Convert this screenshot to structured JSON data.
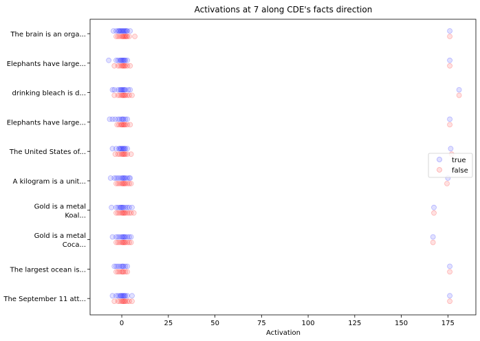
{
  "chart_data": {
    "type": "scatter",
    "title": "Activations at 7 along CDE's facts direction",
    "xlabel": "Activation",
    "ylabel": "",
    "xlim": [
      -17,
      190
    ],
    "xticks": [
      0,
      25,
      50,
      75,
      100,
      125,
      150,
      175
    ],
    "grid": false,
    "legend_position": "right",
    "categories": [
      [
        "The brain is an orga..."
      ],
      [
        "Elephants have large..."
      ],
      [
        "drinking bleach is d..."
      ],
      [
        "Elephants have large..."
      ],
      [
        "The United States of..."
      ],
      [
        "A kilogram is a unit..."
      ],
      [
        "Gold is a metal",
        "Koal..."
      ],
      [
        "Gold is a metal",
        "Coca..."
      ],
      [
        "The largest ocean is..."
      ],
      [
        "The September 11 att..."
      ]
    ],
    "series": [
      {
        "name": "true",
        "color": "#0000ff",
        "values": [
          [
            -4.5,
            -3,
            -2,
            -1.5,
            -1,
            -0.5,
            0,
            0.5,
            1,
            1.5,
            2,
            2.5,
            3,
            4.5,
            176
          ],
          [
            -7,
            -3,
            -2,
            -1,
            -0.5,
            0,
            0.5,
            1,
            1.5,
            2,
            3,
            176
          ],
          [
            -5,
            -4,
            -2,
            -1,
            -0.5,
            0,
            0.5,
            1,
            1.5,
            2,
            3.5,
            4.5,
            181
          ],
          [
            -6.5,
            -5,
            -3.5,
            -2,
            -1,
            0,
            0.5,
            1,
            2,
            3,
            176
          ],
          [
            -5,
            -3,
            -1.5,
            -1,
            -0.5,
            0,
            0.5,
            1,
            1.5,
            2,
            3,
            176.5
          ],
          [
            -6,
            -4,
            -3,
            -2,
            -1,
            0,
            0.5,
            1,
            1.5,
            2,
            3,
            4,
            4.5,
            175
          ],
          [
            -5.5,
            -3,
            -2,
            -1,
            -0.5,
            0,
            0.5,
            1,
            2,
            3,
            4,
            5.5,
            167.5
          ],
          [
            -5,
            -3,
            -2,
            -1,
            0,
            0.5,
            1,
            1.5,
            2,
            3,
            4,
            5,
            167
          ],
          [
            -4,
            -3,
            -2,
            -1,
            0,
            0.5,
            1,
            2,
            3,
            176
          ],
          [
            -5,
            -3,
            -2,
            -1,
            -0.5,
            0,
            0.5,
            1,
            1.5,
            2,
            3,
            5.5,
            176
          ]
        ]
      },
      {
        "name": "false",
        "color": "#ff0000",
        "values": [
          [
            -3,
            -2,
            -1,
            0,
            0.5,
            1,
            1.5,
            2,
            2.5,
            3,
            4,
            7,
            176
          ],
          [
            -4,
            -2,
            -1,
            0,
            0.5,
            1,
            1.5,
            2,
            3,
            4.5,
            176
          ],
          [
            -4,
            -2,
            -1,
            0,
            0.5,
            1,
            1.5,
            2,
            3,
            4,
            5.5,
            181
          ],
          [
            -2.5,
            -1.5,
            -0.5,
            0,
            0.5,
            1,
            1.5,
            2,
            3,
            4.5,
            176
          ],
          [
            -3.5,
            -2,
            -1,
            0,
            0.5,
            1,
            1.5,
            2,
            3,
            5,
            177
          ],
          [
            -3,
            -2,
            -1,
            0,
            0.5,
            1,
            1.5,
            2,
            3,
            4,
            5,
            174.5
          ],
          [
            -3,
            -2,
            -1,
            0,
            0.5,
            1,
            1.5,
            2,
            3,
            4,
            5,
            6.5,
            167.5
          ],
          [
            -3,
            -2,
            -1,
            0,
            0.5,
            1,
            1.5,
            2,
            3,
            4,
            5,
            167
          ],
          [
            -3,
            -2,
            -1,
            0,
            0.5,
            1,
            2,
            3,
            176
          ],
          [
            -4,
            -2,
            -1,
            0,
            0.5,
            1,
            1.5,
            2,
            3,
            4,
            5.5,
            176
          ]
        ]
      }
    ]
  }
}
